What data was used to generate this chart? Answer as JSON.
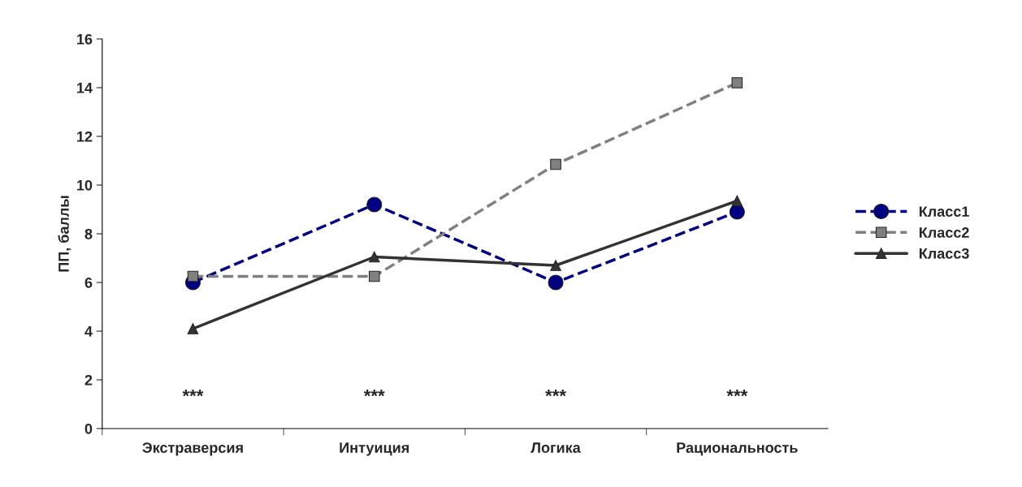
{
  "chart_data": {
    "type": "line",
    "ylabel": "ПП, баллы",
    "categories": [
      "Экстраверсия",
      "Интуиция",
      "Логика",
      "Рациональность"
    ],
    "series": [
      {
        "name": "Класс1",
        "color": "#000080",
        "values": [
          6.0,
          9.2,
          6.0,
          8.9
        ],
        "marker": "circle",
        "line_style": "dashed"
      },
      {
        "name": "Класс2",
        "color": "#808080",
        "values": [
          6.25,
          6.25,
          10.85,
          14.2
        ],
        "marker": "square",
        "line_style": "dashed"
      },
      {
        "name": "Класс3",
        "color": "#333333",
        "values": [
          4.1,
          7.05,
          6.7,
          9.35
        ],
        "marker": "triangle",
        "line_style": "solid"
      }
    ],
    "ylim": [
      0,
      16
    ],
    "yticks": [
      0,
      2,
      4,
      6,
      8,
      10,
      12,
      14,
      16
    ],
    "grid": false,
    "legend": "right",
    "annotations": [
      "***",
      "***",
      "***",
      "***"
    ]
  }
}
